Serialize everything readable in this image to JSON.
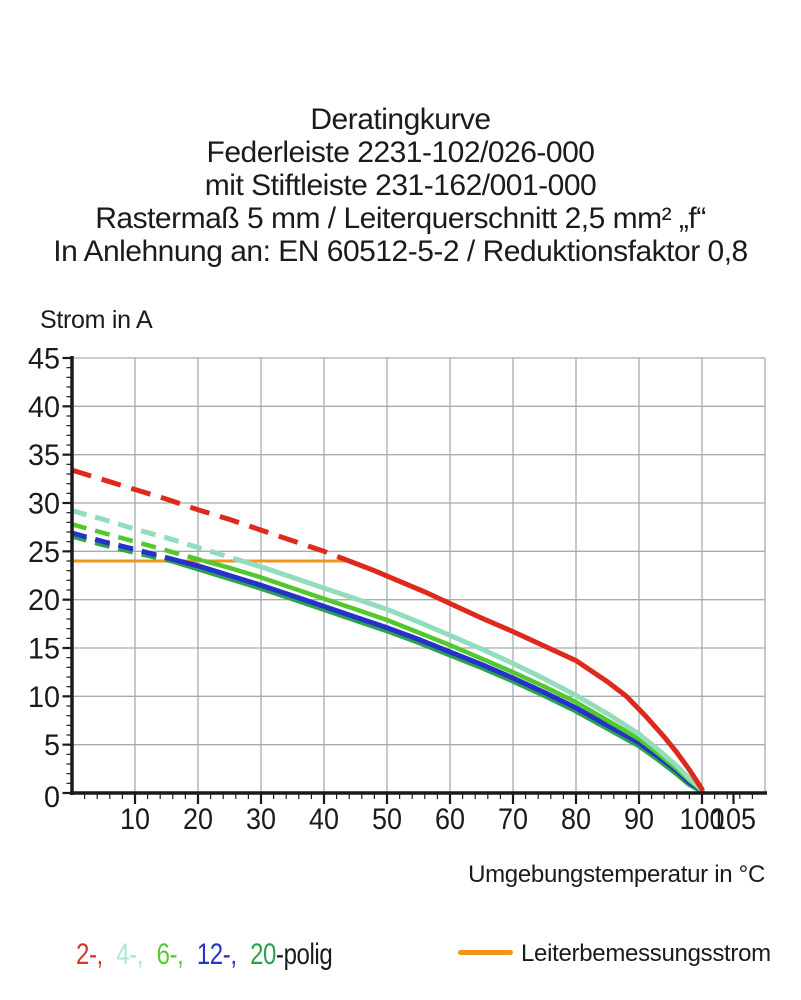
{
  "title": {
    "lines": [
      "Deratingkurve",
      "Federleiste 2231-102/026-000",
      "mit Stiftleiste 231-162/001-000",
      "Rastermaß 5 mm / Leiterquerschnitt 2,5 mm² „f“",
      "In Anlehnung an: EN 60512-5-2 / Reduktionsfaktor 0,8"
    ]
  },
  "chart_data": {
    "type": "line",
    "title": "Deratingkurve",
    "xlabel": "Umgebungstemperatur in °C",
    "ylabel": "Strom in A",
    "xlim": [
      0,
      110
    ],
    "ylim": [
      0,
      45
    ],
    "xticks": [
      10,
      20,
      30,
      40,
      50,
      60,
      70,
      80,
      90,
      100,
      105
    ],
    "yticks": [
      0,
      5,
      10,
      15,
      20,
      25,
      30,
      35,
      40,
      45
    ],
    "x_gridlines": [
      10,
      20,
      30,
      40,
      50,
      60,
      70,
      80,
      90,
      100,
      110
    ],
    "y_gridlines": [
      5,
      10,
      15,
      20,
      25,
      30,
      35,
      40,
      45
    ],
    "minor_ticks": {
      "x_step": 2,
      "y_step": 1
    },
    "grid": true,
    "legend_position": "bottom",
    "colors": {
      "grid": "#a6acae",
      "axis": "#1b1b1d"
    },
    "reference_line": {
      "label": "Leiterbemessungsstrom",
      "value": 24,
      "x_start": 0,
      "x_end": 44,
      "color": "#f0961e"
    },
    "line_style_note": "curves are dashed above the reference line value (24 A) and solid below it",
    "series": [
      {
        "name": "20-polig",
        "pole_count": 20,
        "color": "#2da24d",
        "width": 5.5,
        "dash_pattern": "15 9",
        "solid_from_x": 16,
        "points": [
          [
            0,
            26.6
          ],
          [
            5,
            25.7
          ],
          [
            10,
            24.9
          ],
          [
            16,
            24.0
          ],
          [
            20,
            23.2
          ],
          [
            25,
            22.2
          ],
          [
            30,
            21.2
          ],
          [
            35,
            20.1
          ],
          [
            40,
            19.0
          ],
          [
            45,
            17.9
          ],
          [
            50,
            16.8
          ],
          [
            55,
            15.6
          ],
          [
            60,
            14.3
          ],
          [
            65,
            13.0
          ],
          [
            70,
            11.6
          ],
          [
            75,
            10.1
          ],
          [
            80,
            8.5
          ],
          [
            85,
            6.7
          ],
          [
            90,
            4.9
          ],
          [
            93,
            3.5
          ],
          [
            96,
            2.0
          ],
          [
            98,
            0.9
          ],
          [
            100,
            0.2
          ]
        ]
      },
      {
        "name": "12-polig",
        "pole_count": 12,
        "color": "#2531c8",
        "width": 5,
        "dash_pattern": "15 9",
        "solid_from_x": 17,
        "points": [
          [
            0,
            26.9
          ],
          [
            5,
            26.0
          ],
          [
            10,
            25.2
          ],
          [
            17,
            24.0
          ],
          [
            20,
            23.5
          ],
          [
            25,
            22.5
          ],
          [
            30,
            21.5
          ],
          [
            35,
            20.4
          ],
          [
            40,
            19.3
          ],
          [
            45,
            18.2
          ],
          [
            50,
            17.1
          ],
          [
            55,
            15.9
          ],
          [
            60,
            14.6
          ],
          [
            65,
            13.3
          ],
          [
            70,
            11.9
          ],
          [
            75,
            10.4
          ],
          [
            80,
            8.8
          ],
          [
            85,
            7.0
          ],
          [
            90,
            5.2
          ],
          [
            93,
            3.8
          ],
          [
            96,
            2.3
          ],
          [
            98,
            1.1
          ],
          [
            100,
            0.3
          ]
        ]
      },
      {
        "name": "6-polig",
        "pole_count": 6,
        "color": "#53c72e",
        "width": 4.5,
        "dash_pattern": "15 9",
        "solid_from_x": 21,
        "points": [
          [
            0,
            27.8
          ],
          [
            5,
            26.9
          ],
          [
            10,
            26.0
          ],
          [
            15,
            25.1
          ],
          [
            21,
            24.0
          ],
          [
            25,
            23.3
          ],
          [
            30,
            22.3
          ],
          [
            35,
            21.2
          ],
          [
            40,
            20.1
          ],
          [
            45,
            19.0
          ],
          [
            50,
            17.9
          ],
          [
            55,
            16.6
          ],
          [
            60,
            15.3
          ],
          [
            65,
            13.9
          ],
          [
            70,
            12.5
          ],
          [
            75,
            11.0
          ],
          [
            80,
            9.4
          ],
          [
            85,
            7.5
          ],
          [
            90,
            5.6
          ],
          [
            93,
            4.1
          ],
          [
            96,
            2.5
          ],
          [
            98,
            1.3
          ],
          [
            100,
            0.3
          ]
        ]
      },
      {
        "name": "4-polig",
        "pole_count": 4,
        "color": "#92ddbc",
        "width": 5,
        "dash_pattern": "15 9",
        "solid_from_x": 27,
        "points": [
          [
            0,
            29.2
          ],
          [
            5,
            28.3
          ],
          [
            10,
            27.3
          ],
          [
            15,
            26.4
          ],
          [
            20,
            25.4
          ],
          [
            27,
            24.0
          ],
          [
            30,
            23.4
          ],
          [
            35,
            22.3
          ],
          [
            40,
            21.2
          ],
          [
            45,
            20.1
          ],
          [
            50,
            19.0
          ],
          [
            55,
            17.7
          ],
          [
            60,
            16.3
          ],
          [
            65,
            14.9
          ],
          [
            70,
            13.4
          ],
          [
            75,
            11.8
          ],
          [
            80,
            10.1
          ],
          [
            85,
            8.2
          ],
          [
            90,
            6.1
          ],
          [
            93,
            4.5
          ],
          [
            96,
            2.8
          ],
          [
            98,
            1.5
          ],
          [
            100,
            0.3
          ]
        ]
      },
      {
        "name": "2-polig",
        "pole_count": 2,
        "color": "#dd2a1c",
        "width": 5,
        "dash_pattern": "20 11",
        "solid_from_x": 44,
        "points": [
          [
            0,
            33.4
          ],
          [
            5,
            32.4
          ],
          [
            10,
            31.4
          ],
          [
            15,
            30.4
          ],
          [
            20,
            29.3
          ],
          [
            25,
            28.3
          ],
          [
            30,
            27.2
          ],
          [
            35,
            26.1
          ],
          [
            40,
            25.0
          ],
          [
            44,
            24.0
          ],
          [
            48,
            23.0
          ],
          [
            52,
            21.9
          ],
          [
            56,
            20.8
          ],
          [
            60,
            19.6
          ],
          [
            65,
            18.1
          ],
          [
            70,
            16.7
          ],
          [
            75,
            15.2
          ],
          [
            80,
            13.7
          ],
          [
            85,
            11.5
          ],
          [
            88,
            10.0
          ],
          [
            91,
            8.0
          ],
          [
            94,
            5.8
          ],
          [
            96,
            4.2
          ],
          [
            98,
            2.4
          ],
          [
            99,
            1.4
          ],
          [
            100,
            0.4
          ]
        ]
      }
    ]
  },
  "legend": {
    "items": [
      {
        "label": "2-,",
        "color": "#db3229"
      },
      {
        "label": "4-,",
        "color": "#aee7cd"
      },
      {
        "label": "6-,",
        "color": "#55ca30"
      },
      {
        "label": "12-,",
        "color": "#2a33c6"
      },
      {
        "label": "20",
        "color": "#2da24d"
      }
    ],
    "suffix": "-polig",
    "reference_label": "Leiterbemessungsstrom"
  }
}
